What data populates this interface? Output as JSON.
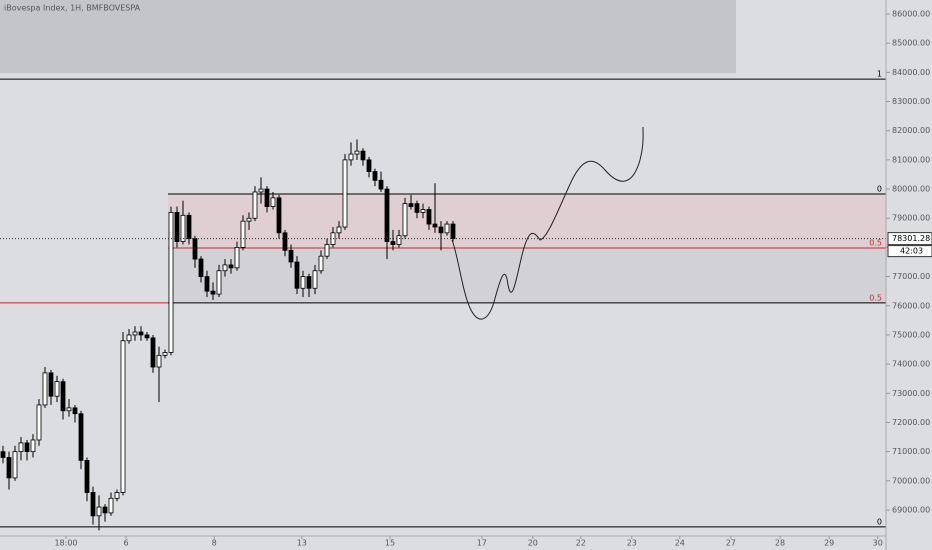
{
  "chart_data": {
    "type": "candlestick",
    "title": "iBovespa Index, 1H, BMFBOVESPA",
    "open": [
      71000,
      70800,
      70100,
      71000,
      71300,
      71000,
      71400,
      72600,
      73700,
      72900,
      73400,
      72400,
      72500,
      72300,
      70700,
      69600,
      68800,
      69100,
      68900,
      69400,
      69600,
      74800,
      75000,
      75100,
      75000,
      74900,
      73900,
      74300,
      74400,
      79200,
      78200,
      79100,
      78300,
      77600,
      77000,
      76500,
      76400,
      77200,
      77400,
      77300,
      78000,
      78900,
      79000,
      79900,
      80000,
      79400,
      79700,
      78500,
      77900,
      77500,
      76600,
      77000,
      76600,
      77200,
      77700,
      78100,
      78500,
      78700,
      81000,
      81200,
      81300,
      81000,
      80600,
      80300,
      80000,
      78200,
      78100,
      78400,
      79500,
      79500,
      79200,
      79300,
      78800,
      78700,
      78500,
      78800
    ],
    "high": [
      71200,
      71000,
      71200,
      71500,
      71400,
      71600,
      72800,
      73900,
      73800,
      73600,
      73500,
      72800,
      72600,
      72400,
      70800,
      69800,
      69500,
      69200,
      69600,
      69700,
      75100,
      75200,
      75300,
      75300,
      75100,
      75000,
      74600,
      74500,
      79400,
      79400,
      79600,
      79200,
      78400,
      77700,
      77200,
      76800,
      77400,
      77600,
      77600,
      78200,
      79100,
      79200,
      80100,
      80400,
      80100,
      79900,
      79800,
      78600,
      78100,
      77700,
      77200,
      77100,
      77400,
      77900,
      78300,
      78700,
      78900,
      81200,
      81600,
      81700,
      81400,
      81100,
      80700,
      80600,
      80100,
      78600,
      78600,
      79700,
      79800,
      79600,
      79500,
      79400,
      80200,
      78900,
      78900,
      78900
    ],
    "low": [
      70600,
      69700,
      70000,
      70700,
      70700,
      70800,
      71200,
      72500,
      72600,
      72700,
      72100,
      72200,
      72000,
      70400,
      69300,
      68500,
      68300,
      68600,
      68800,
      69300,
      69500,
      74700,
      74800,
      74800,
      74800,
      73700,
      72700,
      74200,
      74300,
      78000,
      78100,
      78100,
      77300,
      76800,
      76300,
      76200,
      76300,
      77000,
      77100,
      77200,
      77900,
      78600,
      78900,
      79500,
      79200,
      79300,
      78300,
      77700,
      77300,
      76400,
      76300,
      76300,
      76400,
      77100,
      77600,
      78000,
      78300,
      78600,
      80800,
      81000,
      80800,
      80400,
      80100,
      79900,
      77600,
      77900,
      78000,
      78300,
      79300,
      79000,
      79000,
      78600,
      78500,
      77900,
      78400,
      78200
    ],
    "close": [
      70800,
      70100,
      71000,
      71300,
      71000,
      71400,
      72600,
      73700,
      72900,
      73400,
      72400,
      72500,
      72300,
      70700,
      69600,
      68800,
      69100,
      68900,
      69400,
      69600,
      74800,
      75000,
      75100,
      75000,
      74900,
      73900,
      74300,
      74400,
      79200,
      78200,
      79100,
      78300,
      77600,
      77000,
      76500,
      76400,
      77200,
      77400,
      77300,
      78000,
      78900,
      79000,
      79900,
      80000,
      79400,
      79700,
      78500,
      77900,
      77500,
      76600,
      77000,
      76600,
      77200,
      77700,
      78100,
      78500,
      78700,
      81000,
      81200,
      81300,
      81000,
      80600,
      80300,
      80000,
      78200,
      78100,
      78400,
      79500,
      79400,
      79200,
      79300,
      78800,
      78700,
      78500,
      78800,
      78300
    ],
    "up_color": "#ffffff",
    "down_color": "#000000",
    "ylim": [
      68040,
      86480
    ],
    "yticks": [
      {
        "value": 69000,
        "label": "69000.00"
      },
      {
        "value": 70000,
        "label": "70000.00"
      },
      {
        "value": 71000,
        "label": "71000.00"
      },
      {
        "value": 72000,
        "label": "72000.00"
      },
      {
        "value": 73000,
        "label": "73000.00"
      },
      {
        "value": 74000,
        "label": "74000.00"
      },
      {
        "value": 75000,
        "label": "75000.00"
      },
      {
        "value": 76000,
        "label": "76000.00"
      },
      {
        "value": 77000,
        "label": "77000.00"
      },
      {
        "value": 78000,
        "label": "78000.00"
      },
      {
        "value": 79000,
        "label": "79000.00"
      },
      {
        "value": 80000,
        "label": "80000.00"
      },
      {
        "value": 81000,
        "label": "81000.00"
      },
      {
        "value": 82000,
        "label": "82000.00"
      },
      {
        "value": 83000,
        "label": "83000.00"
      },
      {
        "value": 84000,
        "label": "84000.00"
      },
      {
        "value": 85000,
        "label": "85000.00"
      },
      {
        "value": 86000,
        "label": "86000.00"
      }
    ],
    "xlim": [
      -0.5,
      147.17
    ],
    "xticks": [
      {
        "value": 10.5,
        "label": "18:00"
      },
      {
        "value": 20.5,
        "label": "6"
      },
      {
        "value": 35.2,
        "label": "8"
      },
      {
        "value": 49.8,
        "label": "13"
      },
      {
        "value": 64.5,
        "label": "15"
      },
      {
        "value": 79.8,
        "label": "17"
      },
      {
        "value": 88.3,
        "label": "20"
      },
      {
        "value": 96.3,
        "label": "22"
      },
      {
        "value": 104.8,
        "label": "23"
      },
      {
        "value": 112.8,
        "label": "24"
      },
      {
        "value": 121.3,
        "label": "27"
      },
      {
        "value": 129.5,
        "label": "28"
      },
      {
        "value": 137.7,
        "label": "29"
      },
      {
        "value": 145.8,
        "label": "30"
      }
    ],
    "levels": [
      {
        "label": "1",
        "value": 83770,
        "color": "#000000"
      },
      {
        "label": "0",
        "value": 79830,
        "color": "#000000"
      },
      {
        "label": "0.5",
        "value": 77980,
        "color": "#c62828"
      },
      {
        "label": "0.5",
        "value": 76100,
        "color": "#000000"
      },
      {
        "label": "0",
        "value": 68420,
        "color": "#000000"
      }
    ],
    "last_price": 78301.28,
    "countdown": "42:03"
  }
}
